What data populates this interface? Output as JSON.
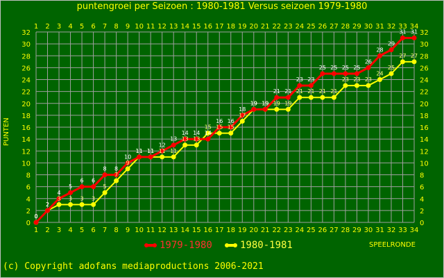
{
  "chart_data": {
    "type": "line",
    "title": "puntengroei per Seizoen : 1980-1981 Versus seizoen 1979-1980",
    "xlabel": "SPEELRONDE",
    "ylabel": "PUNTEN",
    "x": [
      1,
      2,
      3,
      4,
      5,
      6,
      7,
      8,
      9,
      10,
      11,
      12,
      13,
      14,
      15,
      16,
      17,
      18,
      19,
      20,
      21,
      22,
      23,
      24,
      25,
      26,
      27,
      28,
      29,
      30,
      31,
      32,
      33,
      34
    ],
    "xlim": [
      1,
      34
    ],
    "ylim": [
      0,
      32
    ],
    "yticks": [
      0,
      2,
      4,
      6,
      8,
      10,
      12,
      14,
      16,
      18,
      20,
      22,
      24,
      26,
      28,
      30,
      32
    ],
    "grid": true,
    "legend_position": "bottom",
    "series": [
      {
        "name": "1979-1980",
        "color": "#ff0000",
        "values": [
          0,
          2,
          4,
          5,
          6,
          6,
          8,
          8,
          10,
          11,
          11,
          12,
          13,
          14,
          14,
          14,
          16,
          16,
          18,
          19,
          19,
          21,
          21,
          23,
          23,
          25,
          25,
          25,
          25,
          26,
          28,
          29,
          31,
          31
        ]
      },
      {
        "name": "1980-1981",
        "color": "#ffff00",
        "values": [
          0,
          2,
          3,
          3,
          3,
          3,
          5,
          7,
          9,
          11,
          11,
          11,
          11,
          13,
          13,
          15,
          15,
          15,
          17,
          19,
          19,
          19,
          19,
          21,
          21,
          21,
          21,
          23,
          23,
          23,
          24,
          25,
          27,
          27
        ]
      }
    ]
  },
  "footer": {
    "copyright": "(c) Copyright adofans mediaproductions 2006-2021"
  }
}
